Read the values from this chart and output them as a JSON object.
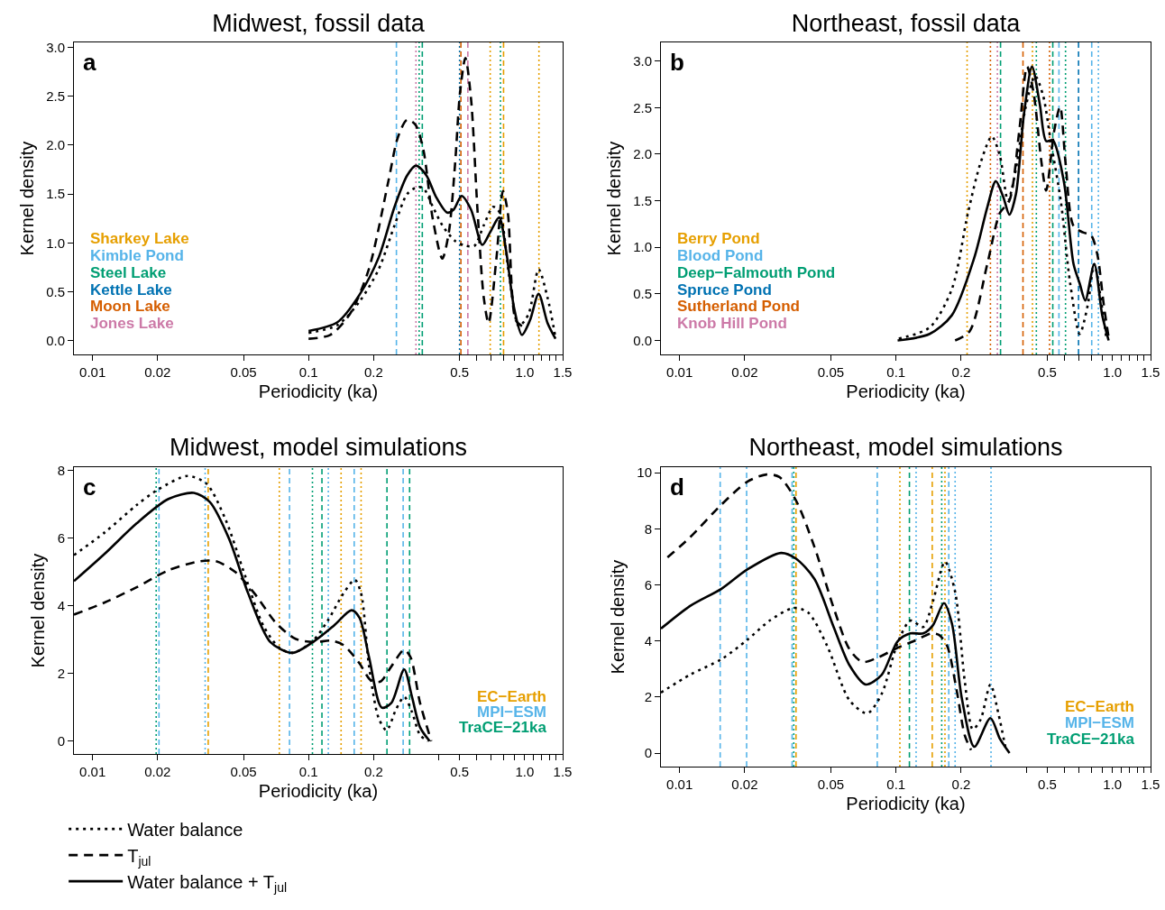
{
  "chart_data": [
    {
      "type": "line",
      "title": "Midwest, fossil data",
      "xlabel": "Periodicity (ka)",
      "ylabel": "Kernel density",
      "annotations": [
        "a"
      ],
      "log": "x",
      "xlim": [
        0.0082,
        1.5
      ],
      "xticks": [
        0.01,
        0.02,
        0.05,
        0.1,
        0.2,
        0.5,
        {
          "value": 0.6,
          "label": null
        },
        {
          "value": 0.7,
          "label": null
        },
        {
          "value": 0.8,
          "label": null
        },
        {
          "value": 0.9,
          "label": null
        },
        {
          "value": 1,
          "label": "1.0"
        },
        {
          "value": 1.1,
          "label": null
        },
        {
          "value": 1.2,
          "label": null
        },
        {
          "value": 1.3,
          "label": null
        },
        {
          "value": 1.4,
          "label": null
        },
        1.5
      ],
      "ylim": [
        -0.14,
        3.05
      ],
      "yticks": [
        {
          "value": 0,
          "label": "0.0"
        },
        0.5,
        {
          "value": 1,
          "label": "1.0"
        },
        1.5,
        {
          "value": 2,
          "label": "2.0"
        },
        2.5,
        {
          "value": 3,
          "label": "3.0"
        }
      ],
      "series": [
        {
          "color": "#000000",
          "line_style": "dotted",
          "x": [
            0.1,
            0.136,
            0.172,
            0.211,
            0.25,
            0.286,
            0.318,
            0.34,
            0.376,
            0.416,
            0.477,
            0.535,
            0.585,
            0.647,
            0.716,
            0.767,
            0.849,
            0.94,
            1.042,
            1.161,
            1.277,
            1.39
          ],
          "values": [
            0.08,
            0.16,
            0.4,
            0.73,
            1.18,
            1.5,
            1.57,
            1.56,
            1.37,
            1.18,
            1.02,
            0.97,
            0.97,
            1.18,
            1.37,
            1.31,
            0.66,
            0.15,
            0.27,
            0.73,
            0.44,
            0.03
          ]
        },
        {
          "color": "#000000",
          "line_style": "dashed",
          "x": [
            0.1,
            0.126,
            0.155,
            0.19,
            0.234,
            0.259,
            0.286,
            0.312,
            0.34,
            0.376,
            0.416,
            0.446,
            0.477,
            0.502,
            0.532,
            0.565,
            0.605,
            0.647,
            0.681,
            0.741,
            0.794,
            0.836,
            0.909,
            0.972
          ],
          "values": [
            0.02,
            0.06,
            0.27,
            0.73,
            1.63,
            2.08,
            2.26,
            2.21,
            1.95,
            1.24,
            0.84,
            1.11,
            1.82,
            2.53,
            2.89,
            2.47,
            1.34,
            0.44,
            0.18,
            0.85,
            1.53,
            1.31,
            0.21,
            0.15
          ]
        },
        {
          "color": "#000000",
          "line_style": "solid",
          "x": [
            0.1,
            0.136,
            0.172,
            0.211,
            0.25,
            0.286,
            0.314,
            0.351,
            0.389,
            0.438,
            0.469,
            0.511,
            0.565,
            0.637,
            0.693,
            0.762,
            0.821,
            0.893,
            0.972,
            1.059,
            1.161,
            1.277,
            1.39
          ],
          "values": [
            0.1,
            0.19,
            0.47,
            0.85,
            1.37,
            1.69,
            1.79,
            1.69,
            1.47,
            1.31,
            1.34,
            1.48,
            1.34,
            0.98,
            1.11,
            1.26,
            0.92,
            0.34,
            0.06,
            0.21,
            0.48,
            0.18,
            0.02
          ]
        }
      ],
      "ref_lines": [
        {
          "axis": "x",
          "value": 0.693,
          "label": "Sharkey Lake",
          "color": "#e69f00",
          "line_style": "dotted"
        },
        {
          "axis": "x",
          "value": 0.799,
          "color": "#e69f00",
          "line_style": "dashed"
        },
        {
          "axis": "x",
          "value": 1.165,
          "color": "#e69f00",
          "line_style": "dotted"
        },
        {
          "axis": "x",
          "value": 0.255,
          "label": "Kimble Pond",
          "color": "#56b4e9",
          "line_style": "dashed"
        },
        {
          "axis": "x",
          "value": 0.325,
          "label": "Steel Lake",
          "color": "#009e73",
          "line_style": "dotted"
        },
        {
          "axis": "x",
          "value": 0.336,
          "color": "#009e73",
          "line_style": "dashed"
        },
        {
          "axis": "x",
          "value": 0.773,
          "color": "#009e73",
          "line_style": "dotted"
        },
        {
          "axis": "x",
          "value": 0.5,
          "label": "Kettle Lake",
          "color": "#0072b2",
          "line_style": "dotted"
        },
        {
          "axis": "x",
          "value": 0.507,
          "label": "Moon Lake",
          "color": "#d55e00",
          "line_style": "dashed"
        },
        {
          "axis": "x",
          "value": 0.314,
          "label": "Jones Lake",
          "color": "#cc79a7",
          "line_style": "dotted"
        },
        {
          "axis": "x",
          "value": 0.546,
          "color": "#cc79a7",
          "line_style": "dashed"
        }
      ]
    },
    {
      "type": "line",
      "title": "Northeast, fossil data",
      "xlabel": "Periodicity (ka)",
      "ylabel": "Kernel density",
      "annotations": [
        "b"
      ],
      "log": "x",
      "xlim": [
        0.0082,
        1.5
      ],
      "xticks": [
        0.01,
        0.02,
        0.05,
        0.1,
        0.2,
        0.5,
        {
          "value": 0.6,
          "label": null
        },
        {
          "value": 0.7,
          "label": null
        },
        {
          "value": 0.8,
          "label": null
        },
        {
          "value": 0.9,
          "label": null
        },
        {
          "value": 1,
          "label": "1.0"
        },
        {
          "value": 1.1,
          "label": null
        },
        {
          "value": 1.2,
          "label": null
        },
        {
          "value": 1.3,
          "label": null
        },
        {
          "value": 1.4,
          "label": null
        },
        1.5
      ],
      "ylim": [
        -0.15,
        3.2
      ],
      "yticks": [
        {
          "value": 0,
          "label": "0.0"
        },
        0.5,
        {
          "value": 1,
          "label": "1.0"
        },
        1.5,
        {
          "value": 2,
          "label": "2.0"
        },
        2.5,
        {
          "value": 3,
          "label": "3.0"
        }
      ],
      "series": [
        {
          "color": "#000000",
          "line_style": "dotted",
          "x": [
            0.103,
            0.143,
            0.181,
            0.215,
            0.246,
            0.277,
            0.302,
            0.329,
            0.358,
            0.396,
            0.439,
            0.478,
            0.52,
            0.577,
            0.638,
            0.706,
            0.769,
            0.824,
            0.897,
            0.94
          ],
          "values": [
            0.02,
            0.14,
            0.55,
            1.37,
            1.91,
            2.19,
            1.98,
            1.5,
            1.84,
            2.49,
            2.84,
            2.63,
            2.12,
            1.5,
            0.61,
            0.07,
            0.38,
            0.82,
            0.34,
            0
          ]
        },
        {
          "color": "#000000",
          "line_style": "dashed",
          "x": [
            0.1875,
            0.219,
            0.264,
            0.302,
            0.334,
            0.371,
            0.403,
            0.432,
            0.47,
            0.494,
            0.538,
            0.573,
            0.607,
            0.661,
            0.731,
            0.796,
            0.852,
            0.912,
            0.965
          ],
          "values": [
            0,
            0.1,
            0.82,
            1.37,
            1.5,
            2.25,
            2.94,
            2.66,
            1.91,
            1.61,
            2.25,
            2.51,
            1.91,
            1.23,
            1.16,
            1.13,
            0.92,
            0.38,
            0
          ]
        },
        {
          "color": "#000000",
          "line_style": "solid",
          "x": [
            0.1017,
            0.143,
            0.181,
            0.23,
            0.264,
            0.289,
            0.313,
            0.334,
            0.358,
            0.39,
            0.425,
            0.462,
            0.494,
            0.53,
            0.596,
            0.661,
            0.706,
            0.749,
            0.824,
            0.897,
            0.96
          ],
          "values": [
            0,
            0.07,
            0.27,
            0.89,
            1.43,
            1.71,
            1.54,
            1.35,
            1.57,
            2.43,
            2.94,
            2.53,
            2.14,
            2.15,
            1.71,
            0.82,
            0.61,
            0.43,
            0.82,
            0.27,
            0
          ]
        }
      ],
      "ref_lines": [
        {
          "axis": "x",
          "value": 0.213,
          "label": "Berry Pond",
          "color": "#e69f00",
          "line_style": "dotted"
        },
        {
          "axis": "x",
          "value": 0.427,
          "color": "#e69f00",
          "line_style": "dotted"
        },
        {
          "axis": "x",
          "value": 0.566,
          "label": "Blood Pond",
          "color": "#56b4e9",
          "line_style": "dashed"
        },
        {
          "axis": "x",
          "value": 0.802,
          "color": "#56b4e9",
          "line_style": "dashed"
        },
        {
          "axis": "x",
          "value": 0.861,
          "color": "#56b4e9",
          "line_style": "dotted"
        },
        {
          "axis": "x",
          "value": 0.304,
          "label": "Deep−Falmouth Pond",
          "color": "#009e73",
          "line_style": "dashed"
        },
        {
          "axis": "x",
          "value": 0.445,
          "color": "#009e73",
          "line_style": "dotted"
        },
        {
          "axis": "x",
          "value": 0.53,
          "color": "#009e73",
          "line_style": "dashed"
        },
        {
          "axis": "x",
          "value": 0.607,
          "color": "#009e73",
          "line_style": "dotted"
        },
        {
          "axis": "x",
          "value": 0.697,
          "label": "Spruce Pond",
          "color": "#0072b2",
          "line_style": "dashed"
        },
        {
          "axis": "x",
          "value": 0.273,
          "label": "Sutherland Pond",
          "color": "#d55e00",
          "line_style": "dotted"
        },
        {
          "axis": "x",
          "value": 0.386,
          "color": "#d55e00",
          "line_style": "dashed"
        },
        {
          "axis": "x",
          "value": 0.512,
          "color": "#d55e00",
          "line_style": "dotted"
        },
        {
          "axis": "x",
          "value": 0.294,
          "label": "Knob Hill Pond",
          "color": "#cc79a7",
          "line_style": "dotted"
        }
      ]
    },
    {
      "type": "line",
      "title": "Midwest, model simulations",
      "xlabel": "Periodicity (ka)",
      "ylabel": "Kernel density",
      "annotations": [
        "c"
      ],
      "log": "x",
      "legend": "bottom",
      "xlim": [
        0.0082,
        1.5
      ],
      "xticks": [
        0.01,
        0.02,
        0.05,
        0.1,
        0.2,
        {
          "value": 0.4,
          "label": null
        },
        0.5,
        {
          "value": 0.6,
          "label": null
        },
        {
          "value": 0.7,
          "label": null
        },
        {
          "value": 0.8,
          "label": null
        },
        {
          "value": 0.9,
          "label": null
        },
        {
          "value": 1,
          "label": "1.0"
        },
        {
          "value": 1.1,
          "label": null
        },
        {
          "value": 1.2,
          "label": null
        },
        {
          "value": 1.3,
          "label": null
        },
        {
          "value": 1.4,
          "label": null
        },
        1.5
      ],
      "ylim": [
        -0.38,
        8.1
      ],
      "yticks": [
        0,
        2,
        4,
        6,
        8
      ],
      "series": [
        {
          "name": "Water balance",
          "color": "#000000",
          "line_style": "dotted",
          "x": [
            0.0082,
            0.01138,
            0.016,
            0.02,
            0.0275,
            0.0337,
            0.0414,
            0.0507,
            0.0621,
            0.0736,
            0.0843,
            0.1035,
            0.1226,
            0.145,
            0.1637,
            0.175,
            0.1905,
            0.211,
            0.2296,
            0.2544,
            0.277,
            0.301,
            0.328,
            0.357
          ],
          "values": [
            5.5,
            6.17,
            6.98,
            7.43,
            7.84,
            7.61,
            6.53,
            4.91,
            3.38,
            2.75,
            2.61,
            2.93,
            3.56,
            4.37,
            4.77,
            4.37,
            2.21,
            0.68,
            0.32,
            0.95,
            1.31,
            0.86,
            0.18,
            0
          ]
        },
        {
          "name": "T$_{jul}$",
          "color": "#000000",
          "line_style": "dashed",
          "x": [
            0.0082,
            0.01138,
            0.016,
            0.02244,
            0.0315,
            0.0373,
            0.0458,
            0.0561,
            0.0712,
            0.0873,
            0.107,
            0.1268,
            0.145,
            0.172,
            0.194,
            0.2148,
            0.2417,
            0.277,
            0.2965,
            0.328,
            0.37
          ],
          "values": [
            3.74,
            4.1,
            4.55,
            5.05,
            5.32,
            5.32,
            5,
            4.37,
            3.47,
            3.02,
            2.93,
            2.97,
            2.84,
            2.3,
            1.8,
            1.76,
            2.21,
            2.7,
            2.48,
            1.13,
            0
          ]
        },
        {
          "name": "Water balance + T$_{jul}$",
          "color": "#000000",
          "line_style": "solid",
          "x": [
            0.0082,
            0.01138,
            0.016,
            0.02244,
            0.02944,
            0.0349,
            0.0428,
            0.0525,
            0.0665,
            0.0843,
            0.107,
            0.1312,
            0.158,
            0.172,
            0.1905,
            0.218,
            0.2417,
            0.277,
            0.301,
            0.328,
            0.3635
          ],
          "values": [
            4.73,
            5.54,
            6.44,
            7.16,
            7.34,
            7.07,
            5.99,
            4.37,
            2.93,
            2.61,
            2.97,
            3.42,
            3.87,
            3.65,
            2.48,
            0.99,
            1.13,
            2.12,
            1.31,
            0.41,
            0
          ]
        }
      ],
      "ref_lines": [
        {
          "axis": "x",
          "value": 0.0343,
          "label": "EC−Earth",
          "color": "#e69f00",
          "line_style": "dashed"
        },
        {
          "axis": "x",
          "value": 0.0732,
          "color": "#e69f00",
          "line_style": "dotted"
        },
        {
          "axis": "x",
          "value": 0.1414,
          "color": "#e69f00",
          "line_style": "dotted"
        },
        {
          "axis": "x",
          "value": 0.175,
          "color": "#e69f00",
          "line_style": "dotted"
        },
        {
          "axis": "x",
          "value": 0.0203,
          "label": "MPI−ESM",
          "color": "#56b4e9",
          "line_style": "dashed"
        },
        {
          "axis": "x",
          "value": 0.0332,
          "color": "#56b4e9",
          "line_style": "dotted"
        },
        {
          "axis": "x",
          "value": 0.0816,
          "color": "#56b4e9",
          "line_style": "dashed"
        },
        {
          "axis": "x",
          "value": 0.1234,
          "color": "#56b4e9",
          "line_style": "dotted"
        },
        {
          "axis": "x",
          "value": 0.1626,
          "color": "#56b4e9",
          "line_style": "dashed"
        },
        {
          "axis": "x",
          "value": 0.274,
          "color": "#56b4e9",
          "line_style": "dashed"
        },
        {
          "axis": "x",
          "value": 0.0197,
          "label": "TraCE−21ka",
          "color": "#009e73",
          "line_style": "dotted"
        },
        {
          "axis": "x",
          "value": 0.1042,
          "color": "#009e73",
          "line_style": "dotted"
        },
        {
          "axis": "x",
          "value": 0.1153,
          "color": "#009e73",
          "line_style": "dashed"
        },
        {
          "axis": "x",
          "value": 0.2306,
          "color": "#009e73",
          "line_style": "dashed"
        },
        {
          "axis": "x",
          "value": 0.2935,
          "color": "#009e73",
          "line_style": "dashed"
        }
      ]
    },
    {
      "type": "line",
      "title": "Northeast, model simulations",
      "xlabel": "Periodicity (ka)",
      "ylabel": "Kernel density",
      "annotations": [
        "d"
      ],
      "log": "x",
      "xlim": [
        0.0082,
        1.5
      ],
      "xticks": [
        0.01,
        0.02,
        0.05,
        0.1,
        0.2,
        {
          "value": 0.4,
          "label": null
        },
        0.5,
        {
          "value": 0.6,
          "label": null
        },
        {
          "value": 0.7,
          "label": null
        },
        {
          "value": 0.8,
          "label": null
        },
        {
          "value": 0.9,
          "label": null
        },
        {
          "value": 1,
          "label": "1.0"
        },
        {
          "value": 1.1,
          "label": null
        },
        {
          "value": 1.2,
          "label": null
        },
        {
          "value": 1.3,
          "label": null
        },
        {
          "value": 1.4,
          "label": null
        },
        1.5
      ],
      "ylim": [
        -0.48,
        10.2
      ],
      "yticks": [
        0,
        2,
        4,
        6,
        8,
        10
      ],
      "series": [
        {
          "color": "#000000",
          "line_style": "dotted",
          "x": [
            0.0082,
            0.01114,
            0.01567,
            0.02055,
            0.0261,
            0.0337,
            0.0393,
            0.0481,
            0.061,
            0.0736,
            0.0858,
            0.1017,
            0.1165,
            0.1335,
            0.148,
            0.1683,
            0.1875,
            0.2078,
            0.2262,
            0.246,
            0.273,
            0.297,
            0.323
          ],
          "values": [
            2.16,
            2.79,
            3.36,
            4.04,
            4.73,
            5.18,
            5.01,
            3.82,
            1.88,
            1.42,
            2.11,
            3.93,
            4.73,
            4.5,
            5.41,
            6.83,
            5.75,
            2.56,
            0.85,
            1.2,
            2.45,
            1.42,
            0.06
          ]
        },
        {
          "color": "#000000",
          "line_style": "dashed",
          "x": [
            0.00879,
            0.01114,
            0.01567,
            0.02055,
            0.02522,
            0.0289,
            0.0343,
            0.042,
            0.0515,
            0.061,
            0.07,
            0.083,
            0.1017,
            0.1205,
            0.1454,
            0.1583,
            0.1723,
            0.1908,
            0.2078,
            0.2222
          ],
          "values": [
            6.98,
            7.69,
            8.88,
            9.68,
            9.94,
            9.85,
            9.05,
            7.35,
            5.18,
            3.7,
            3.25,
            3.42,
            3.76,
            3.99,
            4.27,
            4.21,
            3.82,
            2.22,
            0.63,
            0.11
          ]
        },
        {
          "color": "#000000",
          "line_style": "solid",
          "x": [
            0.0082,
            0.01114,
            0.01567,
            0.02055,
            0.0294,
            0.0343,
            0.042,
            0.0515,
            0.061,
            0.0724,
            0.0858,
            0.1017,
            0.1165,
            0.1335,
            0.148,
            0.1665,
            0.1814,
            0.201,
            0.23,
            0.273,
            0.302,
            0.3345
          ],
          "values": [
            4.44,
            5.24,
            5.87,
            6.55,
            7.14,
            6.95,
            6.21,
            4.5,
            3.13,
            2.45,
            2.79,
            3.99,
            4.27,
            4.27,
            4.56,
            5.35,
            4.61,
            1.99,
            0.23,
            1.25,
            0.51,
            0
          ]
        }
      ],
      "ref_lines": [
        {
          "axis": "x",
          "value": 0.0345,
          "label": "EC−Earth",
          "color": "#e69f00",
          "line_style": "dashed"
        },
        {
          "axis": "x",
          "value": 0.1042,
          "color": "#e69f00",
          "line_style": "dotted"
        },
        {
          "axis": "x",
          "value": 0.147,
          "color": "#e69f00",
          "line_style": "dashed"
        },
        {
          "axis": "x",
          "value": 0.1683,
          "color": "#e69f00",
          "line_style": "dotted"
        },
        {
          "axis": "x",
          "value": 0.0154,
          "label": "MPI−ESM",
          "color": "#56b4e9",
          "line_style": "dashed"
        },
        {
          "axis": "x",
          "value": 0.0204,
          "color": "#56b4e9",
          "line_style": "dashed"
        },
        {
          "axis": "x",
          "value": 0.0331,
          "color": "#56b4e9",
          "line_style": "dashed"
        },
        {
          "axis": "x",
          "value": 0.0819,
          "color": "#56b4e9",
          "line_style": "dashed"
        },
        {
          "axis": "x",
          "value": 0.1238,
          "color": "#56b4e9",
          "line_style": "dotted"
        },
        {
          "axis": "x",
          "value": 0.1753,
          "color": "#56b4e9",
          "line_style": "dashed"
        },
        {
          "axis": "x",
          "value": 0.1875,
          "color": "#56b4e9",
          "line_style": "dotted"
        },
        {
          "axis": "x",
          "value": 0.2747,
          "color": "#56b4e9",
          "line_style": "dotted"
        },
        {
          "axis": "x",
          "value": 0.0337,
          "label": "TraCE−21ka",
          "color": "#009e73",
          "line_style": "dotted"
        },
        {
          "axis": "x",
          "value": 0.1153,
          "color": "#009e73",
          "line_style": "dashed"
        },
        {
          "axis": "x",
          "value": 0.1626,
          "color": "#009e73",
          "line_style": "dotted"
        }
      ]
    }
  ]
}
